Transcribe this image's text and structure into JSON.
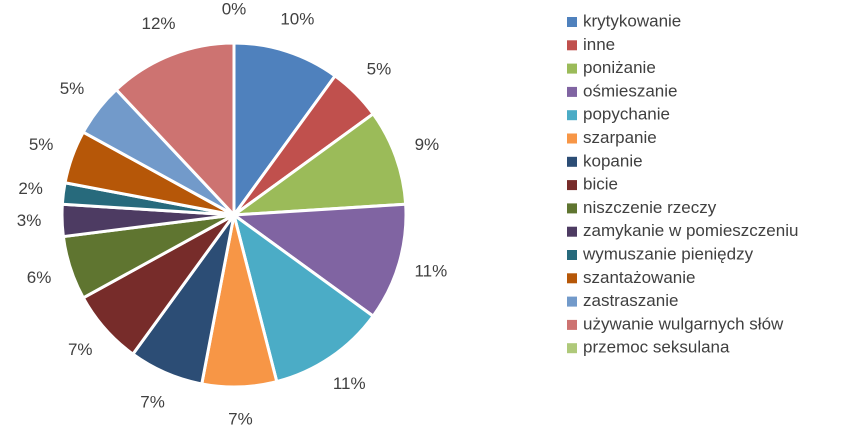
{
  "chart_data": {
    "type": "pie",
    "categories": [
      "krytykowanie",
      "inne",
      "poniżanie",
      "ośmieszanie",
      "popychanie",
      "szarpanie",
      "kopanie",
      "bicie",
      "niszczenie rzeczy",
      "zamykanie w pomieszczeniu",
      "wymuszanie pieniędzy",
      "szantażowanie",
      "zastraszanie",
      "używanie wulgarnych słów",
      "przemoc seksulana"
    ],
    "values": [
      10,
      5,
      9,
      11,
      11,
      7,
      7,
      7,
      6,
      3,
      2,
      5,
      5,
      12,
      0
    ],
    "value_labels": [
      "10%",
      "5%",
      "9%",
      "11%",
      "11%",
      "7%",
      "7%",
      "7%",
      "6%",
      "3%",
      "2%",
      "5%",
      "5%",
      "12%",
      "0%"
    ],
    "colors": [
      "#4f81bd",
      "#c0504d",
      "#9bbb59",
      "#8064a2",
      "#4bacc6",
      "#f79646",
      "#2c4d75",
      "#772c2a",
      "#5f7530",
      "#4d3b62",
      "#276a7c",
      "#b65708",
      "#729aca",
      "#cd7371",
      "#afc97a"
    ],
    "legend": "right"
  }
}
